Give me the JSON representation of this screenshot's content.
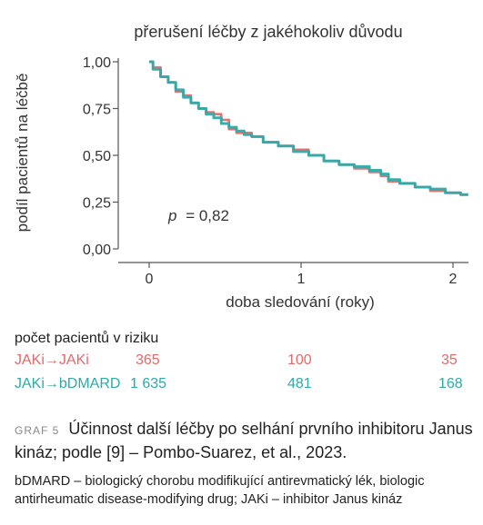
{
  "chart_data": {
    "type": "line",
    "title": "přerušení léčby z jakéhokoliv důvodu",
    "xlabel": "doba sledování (roky)",
    "ylabel": "podíl pacientů na léčbě",
    "xlim": [
      -0.2,
      2.1
    ],
    "ylim": [
      0.0,
      1.0
    ],
    "xticks": [
      0,
      1,
      2
    ],
    "yticks": [
      0.0,
      0.25,
      0.5,
      0.75,
      1.0
    ],
    "xtick_labels": [
      "0",
      "1",
      "2"
    ],
    "ytick_labels": [
      "0,00",
      "0,25",
      "0,50",
      "0,75",
      "1,00"
    ],
    "annotation": {
      "p_symbol": "p",
      "p_value": "= 0,82"
    },
    "series": [
      {
        "name": "JAKi→JAKi",
        "color": "#e26a6a",
        "x": [
          0.0,
          0.05,
          0.1,
          0.15,
          0.2,
          0.25,
          0.3,
          0.35,
          0.4,
          0.45,
          0.5,
          0.55,
          0.6,
          0.65,
          0.7,
          0.8,
          0.9,
          1.0,
          1.1,
          1.2,
          1.3,
          1.4,
          1.5,
          1.55,
          1.6,
          1.7,
          1.8,
          1.9,
          2.0,
          2.1
        ],
        "y": [
          1.0,
          0.97,
          0.92,
          0.89,
          0.84,
          0.82,
          0.78,
          0.75,
          0.73,
          0.72,
          0.69,
          0.64,
          0.62,
          0.62,
          0.6,
          0.57,
          0.55,
          0.53,
          0.5,
          0.47,
          0.45,
          0.43,
          0.41,
          0.39,
          0.36,
          0.35,
          0.33,
          0.31,
          0.3,
          0.29
        ]
      },
      {
        "name": "JAKi→bDMARD",
        "color": "#2eaaa8",
        "x": [
          0.0,
          0.05,
          0.1,
          0.15,
          0.2,
          0.25,
          0.3,
          0.35,
          0.4,
          0.45,
          0.5,
          0.55,
          0.6,
          0.65,
          0.7,
          0.8,
          0.9,
          1.0,
          1.1,
          1.2,
          1.3,
          1.4,
          1.5,
          1.55,
          1.6,
          1.7,
          1.8,
          1.9,
          2.0,
          2.1
        ],
        "y": [
          1.0,
          0.96,
          0.92,
          0.89,
          0.85,
          0.81,
          0.78,
          0.75,
          0.72,
          0.7,
          0.67,
          0.65,
          0.63,
          0.61,
          0.6,
          0.57,
          0.55,
          0.52,
          0.5,
          0.47,
          0.45,
          0.44,
          0.42,
          0.4,
          0.37,
          0.35,
          0.33,
          0.32,
          0.3,
          0.29
        ]
      }
    ],
    "grid": false,
    "legend": "none"
  },
  "risk_table": {
    "title": "počet pacientů v riziku",
    "rows": [
      {
        "label": "JAKi→JAKi",
        "values": [
          "365",
          "100",
          "35"
        ]
      },
      {
        "label": "JAKi→bDMARD",
        "values": [
          "1 635",
          "481",
          "168"
        ]
      }
    ]
  },
  "caption": {
    "tag": "GRAF 5",
    "text": "Účinnost další léčby po selhání prvního inhibitoru Janus kináz; podle [9] – Pombo-Suarez, et al., 2023.",
    "note": "bDMARD – biologický chorobu modifikující antirevmatický lék, biologic antirheumatic disease-modifying drug; JAKi – inhibitor Janus kináz"
  }
}
